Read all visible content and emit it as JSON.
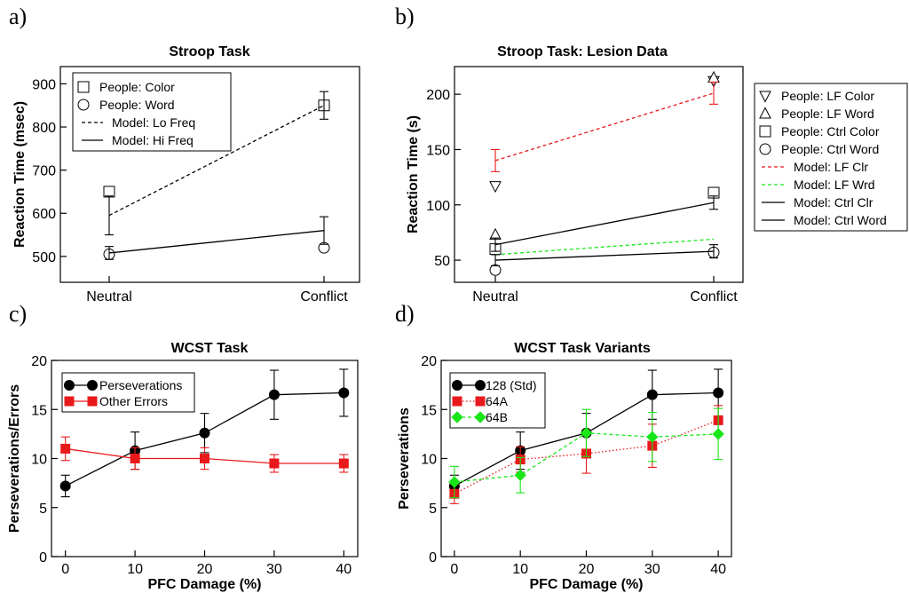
{
  "panels": [
    {
      "letter": "a)",
      "chart_data": {
        "type": "line",
        "title": "Stroop Task",
        "xlabel": "",
        "ylabel": "Reaction Time (msec)",
        "categories": [
          "Neutral",
          "Conflict"
        ],
        "ylim": [
          440,
          940
        ],
        "yticks": [
          500,
          600,
          700,
          800,
          900
        ],
        "legend_position": "top-left",
        "series": [
          {
            "name": "People: Color",
            "style": "points",
            "marker": "square",
            "values": [
              650,
              850
            ]
          },
          {
            "name": "People: Word",
            "style": "points",
            "marker": "circle",
            "values": [
              505,
              520
            ]
          },
          {
            "name": "Model: Lo Freq",
            "style": "line",
            "dash": "dashed",
            "color": "#000000",
            "values": [
              595,
              850
            ],
            "errors": [
              45,
              32
            ]
          },
          {
            "name": "Model: Hi Freq",
            "style": "line",
            "dash": "solid",
            "color": "#000000",
            "values": [
              508,
              560
            ],
            "errors": [
              15,
              32
            ]
          }
        ]
      }
    },
    {
      "letter": "b)",
      "chart_data": {
        "type": "line",
        "title": "Stroop Task: Lesion Data",
        "xlabel": "",
        "ylabel": "Reaction Time (s)",
        "categories": [
          "Neutral",
          "Conflict"
        ],
        "ylim": [
          30,
          225
        ],
        "yticks": [
          50,
          100,
          150,
          200
        ],
        "legend_position": "outside-right",
        "series": [
          {
            "name": "People: LF Color",
            "style": "points",
            "marker": "triangle-down",
            "values": [
              117,
              212
            ]
          },
          {
            "name": "People: LF Word",
            "style": "points",
            "marker": "triangle-up",
            "values": [
              73,
              215
            ]
          },
          {
            "name": "People: Ctrl Color",
            "style": "points",
            "marker": "square",
            "values": [
              60,
              111
            ]
          },
          {
            "name": "People: Ctrl Word",
            "style": "points",
            "marker": "circle",
            "values": [
              41,
              57
            ]
          },
          {
            "name": "Model: LF Clr",
            "style": "line",
            "dash": "dashed",
            "color": "#e8191b",
            "values": [
              140,
              201
            ],
            "errors": [
              10,
              10
            ]
          },
          {
            "name": "Model: LF Wrd",
            "style": "line",
            "dash": "dashed",
            "color": "#19e619",
            "values": [
              55,
              69
            ],
            "errors": [
              0,
              0
            ]
          },
          {
            "name": "Model: Ctrl Clr",
            "style": "line",
            "dash": "solid",
            "color": "#000000",
            "values": [
              64,
              102
            ],
            "errors": [
              6,
              6
            ]
          },
          {
            "name": "Model: Ctrl Word",
            "style": "line",
            "dash": "solid",
            "color": "#000000",
            "values": [
              50,
              58
            ],
            "errors": [
              5,
              6
            ]
          }
        ]
      }
    },
    {
      "letter": "c)",
      "chart_data": {
        "type": "line",
        "title": "WCST Task",
        "xlabel": "PFC Damage (%)",
        "ylabel": "Perseverations/Errors",
        "x": [
          0,
          10,
          20,
          30,
          40
        ],
        "xlim": [
          -2,
          42
        ],
        "xticks": [
          0,
          10,
          20,
          30,
          40
        ],
        "ylim": [
          0,
          20
        ],
        "yticks": [
          0,
          5,
          10,
          15,
          20
        ],
        "legend_position": "top-left",
        "series": [
          {
            "name": "Perseverations",
            "style": "line",
            "dash": "solid",
            "color": "#000000",
            "marker": "circle-filled",
            "values": [
              7.2,
              10.8,
              12.6,
              16.5,
              16.7
            ],
            "errors": [
              1.1,
              1.9,
              2.0,
              2.5,
              2.4
            ]
          },
          {
            "name": "Other Errors",
            "style": "line",
            "dash": "solid",
            "color": "#e8191b",
            "marker": "square-filled",
            "values": [
              11.0,
              10.0,
              10.0,
              9.5,
              9.5
            ],
            "errors": [
              1.2,
              1.1,
              1.1,
              0.9,
              0.9
            ]
          }
        ]
      }
    },
    {
      "letter": "d)",
      "chart_data": {
        "type": "line",
        "title": "WCST Task Variants",
        "xlabel": "PFC Damage (%)",
        "ylabel": "Perseverations",
        "x": [
          0,
          10,
          20,
          30,
          40
        ],
        "xlim": [
          -2,
          42
        ],
        "xticks": [
          0,
          10,
          20,
          30,
          40
        ],
        "ylim": [
          0,
          20
        ],
        "yticks": [
          0,
          5,
          10,
          15,
          20
        ],
        "legend_position": "top-left",
        "series": [
          {
            "name": "128 (Std)",
            "style": "line",
            "dash": "solid",
            "color": "#000000",
            "marker": "circle-filled",
            "values": [
              7.2,
              10.8,
              12.6,
              16.5,
              16.7
            ],
            "errors": [
              1.1,
              1.9,
              2.0,
              2.5,
              2.4
            ]
          },
          {
            "name": "64A",
            "style": "line",
            "dash": "dotted",
            "color": "#e8191b",
            "marker": "square-filled",
            "values": [
              6.4,
              9.9,
              10.5,
              11.3,
              13.9
            ],
            "errors": [
              1.0,
              1.3,
              2.0,
              2.2,
              1.5
            ]
          },
          {
            "name": "64B",
            "style": "line",
            "dash": "dashed",
            "color": "#19e619",
            "marker": "diamond-filled",
            "values": [
              7.6,
              8.3,
              12.6,
              12.2,
              12.5
            ],
            "errors": [
              1.6,
              1.8,
              2.4,
              2.5,
              2.6
            ]
          }
        ]
      }
    }
  ]
}
